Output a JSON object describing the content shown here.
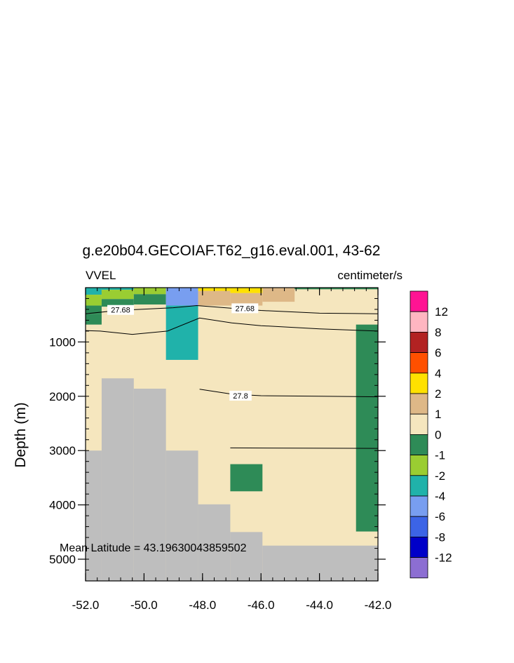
{
  "chart_data": {
    "type": "heatmap",
    "title": "g.e20b04.GECOIAF.T62_g16.eval.001, 43-62",
    "left_label": "VVEL",
    "right_label": "centimeter/s",
    "ylabel": "Depth (m)",
    "xlabel": "",
    "annotation": "Mean Latitude = 43.19630043859502",
    "xlim": [
      -52.0,
      -42.0
    ],
    "ylim": [
      5400,
      0
    ],
    "x_ticks": [
      -52.0,
      -50.0,
      -48.0,
      -46.0,
      -44.0,
      -42.0
    ],
    "x_tick_labels": [
      "-52.0",
      "-50.0",
      "-48.0",
      "-46.0",
      "-44.0",
      "-42.0"
    ],
    "y_ticks": [
      1000,
      2000,
      3000,
      4000,
      5000
    ],
    "y_tick_labels": [
      "1000",
      "2000",
      "3000",
      "4000",
      "5000"
    ],
    "background_value": "0 to 1",
    "colors": {
      "land": "#bebebe",
      "background": "#f5e6be",
      "contour": "#000000"
    },
    "colorbar": {
      "levels": [
        "12",
        "8",
        "6",
        "4",
        "2",
        "1",
        "0",
        "-1",
        "-2",
        "-4",
        "-6",
        "-8",
        "-12"
      ],
      "colors": [
        "#8c6ed2",
        "#0000c8",
        "#3c64e6",
        "#789ef0",
        "#20b2aa",
        "#9acd32",
        "#2e8b57",
        "#f5e6be",
        "#deb887",
        "#ffe100",
        "#ff5000",
        "#b22222",
        "#ffb6c1",
        "#ff1493"
      ]
    },
    "cells": [
      {
        "x": [
          -52.0,
          -51.45
        ],
        "depth": [
          0,
          130
        ],
        "color": "#20b2aa"
      },
      {
        "x": [
          -52.0,
          -51.45
        ],
        "depth": [
          130,
          330
        ],
        "color": "#9acd32"
      },
      {
        "x": [
          -52.0,
          -51.45
        ],
        "depth": [
          330,
          480
        ],
        "color": "#2e8b57"
      },
      {
        "x": [
          -52.0,
          -51.45
        ],
        "depth": [
          480,
          680
        ],
        "color": "#2e8b57"
      },
      {
        "x": [
          -51.45,
          -50.35
        ],
        "depth": [
          0,
          40
        ],
        "color": "#20b2aa"
      },
      {
        "x": [
          -51.45,
          -50.35
        ],
        "depth": [
          40,
          210
        ],
        "color": "#9acd32"
      },
      {
        "x": [
          -51.45,
          -50.35
        ],
        "depth": [
          210,
          350
        ],
        "color": "#2e8b57"
      },
      {
        "x": [
          -50.35,
          -49.25
        ],
        "depth": [
          0,
          120
        ],
        "color": "#9acd32"
      },
      {
        "x": [
          -50.35,
          -49.25
        ],
        "depth": [
          120,
          310
        ],
        "color": "#2e8b57"
      },
      {
        "x": [
          -49.25,
          -48.15
        ],
        "depth": [
          0,
          330
        ],
        "color": "#789ef0"
      },
      {
        "x": [
          -49.25,
          -48.15
        ],
        "depth": [
          330,
          1330
        ],
        "color": "#20b2aa"
      },
      {
        "x": [
          -48.15,
          -47.05
        ],
        "depth": [
          0,
          60
        ],
        "color": "#ffe100"
      },
      {
        "x": [
          -48.15,
          -47.05
        ],
        "depth": [
          60,
          330
        ],
        "color": "#deb887"
      },
      {
        "x": [
          -47.05,
          -45.95
        ],
        "depth": [
          0,
          100
        ],
        "color": "#ffe100"
      },
      {
        "x": [
          -47.05,
          -45.95
        ],
        "depth": [
          100,
          330
        ],
        "color": "#deb887"
      },
      {
        "x": [
          -45.95,
          -44.85
        ],
        "depth": [
          0,
          260
        ],
        "color": "#deb887"
      },
      {
        "x": [
          -44.85,
          -42.75
        ],
        "depth": [
          0,
          30
        ],
        "color": "#2e8b57"
      },
      {
        "x": [
          -42.75,
          -42.0
        ],
        "depth": [
          0,
          30
        ],
        "color": "#2e8b57"
      },
      {
        "x": [
          -47.05,
          -45.95
        ],
        "depth": [
          3250,
          3750
        ],
        "color": "#2e8b57"
      },
      {
        "x": [
          -42.75,
          -42.0
        ],
        "depth": [
          680,
          4490
        ],
        "color": "#2e8b57"
      }
    ],
    "land": [
      {
        "x": [
          -52.0,
          -51.45
        ],
        "depth": [
          3000,
          5400
        ]
      },
      {
        "x": [
          -51.45,
          -50.35
        ],
        "depth": [
          1670,
          5400
        ]
      },
      {
        "x": [
          -50.35,
          -49.25
        ],
        "depth": [
          1860,
          5400
        ]
      },
      {
        "x": [
          -49.25,
          -48.15
        ],
        "depth": [
          3000,
          5400
        ]
      },
      {
        "x": [
          -48.15,
          -47.05
        ],
        "depth": [
          3990,
          5400
        ]
      },
      {
        "x": [
          -47.05,
          -45.95
        ],
        "depth": [
          4500,
          5400
        ]
      },
      {
        "x": [
          -45.95,
          -42.0
        ],
        "depth": [
          4750,
          5400
        ]
      }
    ],
    "contours": [
      {
        "label": "27.68",
        "points": [
          [
            -52.0,
            480
          ],
          [
            -50.9,
            420
          ],
          [
            -49.0,
            370
          ],
          [
            -48.2,
            330
          ],
          [
            -47.0,
            380
          ],
          [
            -46.0,
            420
          ],
          [
            -44.0,
            470
          ],
          [
            -42.0,
            480
          ]
        ]
      },
      {
        "label": "",
        "points": [
          [
            -52.0,
            790
          ],
          [
            -51.5,
            800
          ],
          [
            -50.4,
            860
          ],
          [
            -49.2,
            800
          ],
          [
            -48.1,
            560
          ],
          [
            -47.0,
            650
          ],
          [
            -46.0,
            700
          ],
          [
            -44.0,
            760
          ],
          [
            -42.0,
            800
          ]
        ]
      },
      {
        "label": "27.8",
        "points": [
          [
            -48.1,
            1870
          ],
          [
            -47.0,
            1960
          ],
          [
            -46.0,
            1990
          ],
          [
            -44.0,
            2000
          ],
          [
            -42.0,
            2010
          ]
        ]
      },
      {
        "label": "",
        "points": [
          [
            -47.05,
            2950
          ],
          [
            -42.0,
            2960
          ]
        ]
      }
    ],
    "contour_labels": [
      {
        "text": "27.68",
        "x": -50.8,
        "depth": 410
      },
      {
        "text": "27.68",
        "x": -46.55,
        "depth": 380
      },
      {
        "text": "27.8",
        "x": -46.7,
        "depth": 1990
      }
    ]
  }
}
